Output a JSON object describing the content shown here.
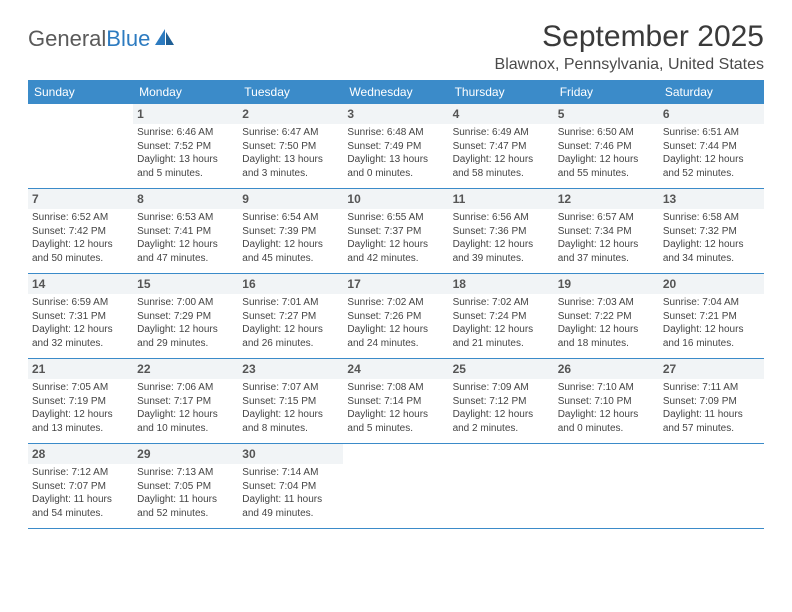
{
  "logo": {
    "text1": "General",
    "text2": "Blue"
  },
  "title": "September 2025",
  "location": "Blawnox, Pennsylvania, United States",
  "colors": {
    "header_bg": "#3b8bc9",
    "header_text": "#ffffff",
    "shade_bg": "#f1f4f6",
    "border": "#3b8bc9",
    "logo_blue": "#2d7bc0"
  },
  "dayHeaders": [
    "Sunday",
    "Monday",
    "Tuesday",
    "Wednesday",
    "Thursday",
    "Friday",
    "Saturday"
  ],
  "weeks": [
    [
      {
        "num": "",
        "sunrise": "",
        "sunset": "",
        "daylight": ""
      },
      {
        "num": "1",
        "sunrise": "Sunrise: 6:46 AM",
        "sunset": "Sunset: 7:52 PM",
        "daylight": "Daylight: 13 hours and 5 minutes."
      },
      {
        "num": "2",
        "sunrise": "Sunrise: 6:47 AM",
        "sunset": "Sunset: 7:50 PM",
        "daylight": "Daylight: 13 hours and 3 minutes."
      },
      {
        "num": "3",
        "sunrise": "Sunrise: 6:48 AM",
        "sunset": "Sunset: 7:49 PM",
        "daylight": "Daylight: 13 hours and 0 minutes."
      },
      {
        "num": "4",
        "sunrise": "Sunrise: 6:49 AM",
        "sunset": "Sunset: 7:47 PM",
        "daylight": "Daylight: 12 hours and 58 minutes."
      },
      {
        "num": "5",
        "sunrise": "Sunrise: 6:50 AM",
        "sunset": "Sunset: 7:46 PM",
        "daylight": "Daylight: 12 hours and 55 minutes."
      },
      {
        "num": "6",
        "sunrise": "Sunrise: 6:51 AM",
        "sunset": "Sunset: 7:44 PM",
        "daylight": "Daylight: 12 hours and 52 minutes."
      }
    ],
    [
      {
        "num": "7",
        "sunrise": "Sunrise: 6:52 AM",
        "sunset": "Sunset: 7:42 PM",
        "daylight": "Daylight: 12 hours and 50 minutes."
      },
      {
        "num": "8",
        "sunrise": "Sunrise: 6:53 AM",
        "sunset": "Sunset: 7:41 PM",
        "daylight": "Daylight: 12 hours and 47 minutes."
      },
      {
        "num": "9",
        "sunrise": "Sunrise: 6:54 AM",
        "sunset": "Sunset: 7:39 PM",
        "daylight": "Daylight: 12 hours and 45 minutes."
      },
      {
        "num": "10",
        "sunrise": "Sunrise: 6:55 AM",
        "sunset": "Sunset: 7:37 PM",
        "daylight": "Daylight: 12 hours and 42 minutes."
      },
      {
        "num": "11",
        "sunrise": "Sunrise: 6:56 AM",
        "sunset": "Sunset: 7:36 PM",
        "daylight": "Daylight: 12 hours and 39 minutes."
      },
      {
        "num": "12",
        "sunrise": "Sunrise: 6:57 AM",
        "sunset": "Sunset: 7:34 PM",
        "daylight": "Daylight: 12 hours and 37 minutes."
      },
      {
        "num": "13",
        "sunrise": "Sunrise: 6:58 AM",
        "sunset": "Sunset: 7:32 PM",
        "daylight": "Daylight: 12 hours and 34 minutes."
      }
    ],
    [
      {
        "num": "14",
        "sunrise": "Sunrise: 6:59 AM",
        "sunset": "Sunset: 7:31 PM",
        "daylight": "Daylight: 12 hours and 32 minutes."
      },
      {
        "num": "15",
        "sunrise": "Sunrise: 7:00 AM",
        "sunset": "Sunset: 7:29 PM",
        "daylight": "Daylight: 12 hours and 29 minutes."
      },
      {
        "num": "16",
        "sunrise": "Sunrise: 7:01 AM",
        "sunset": "Sunset: 7:27 PM",
        "daylight": "Daylight: 12 hours and 26 minutes."
      },
      {
        "num": "17",
        "sunrise": "Sunrise: 7:02 AM",
        "sunset": "Sunset: 7:26 PM",
        "daylight": "Daylight: 12 hours and 24 minutes."
      },
      {
        "num": "18",
        "sunrise": "Sunrise: 7:02 AM",
        "sunset": "Sunset: 7:24 PM",
        "daylight": "Daylight: 12 hours and 21 minutes."
      },
      {
        "num": "19",
        "sunrise": "Sunrise: 7:03 AM",
        "sunset": "Sunset: 7:22 PM",
        "daylight": "Daylight: 12 hours and 18 minutes."
      },
      {
        "num": "20",
        "sunrise": "Sunrise: 7:04 AM",
        "sunset": "Sunset: 7:21 PM",
        "daylight": "Daylight: 12 hours and 16 minutes."
      }
    ],
    [
      {
        "num": "21",
        "sunrise": "Sunrise: 7:05 AM",
        "sunset": "Sunset: 7:19 PM",
        "daylight": "Daylight: 12 hours and 13 minutes."
      },
      {
        "num": "22",
        "sunrise": "Sunrise: 7:06 AM",
        "sunset": "Sunset: 7:17 PM",
        "daylight": "Daylight: 12 hours and 10 minutes."
      },
      {
        "num": "23",
        "sunrise": "Sunrise: 7:07 AM",
        "sunset": "Sunset: 7:15 PM",
        "daylight": "Daylight: 12 hours and 8 minutes."
      },
      {
        "num": "24",
        "sunrise": "Sunrise: 7:08 AM",
        "sunset": "Sunset: 7:14 PM",
        "daylight": "Daylight: 12 hours and 5 minutes."
      },
      {
        "num": "25",
        "sunrise": "Sunrise: 7:09 AM",
        "sunset": "Sunset: 7:12 PM",
        "daylight": "Daylight: 12 hours and 2 minutes."
      },
      {
        "num": "26",
        "sunrise": "Sunrise: 7:10 AM",
        "sunset": "Sunset: 7:10 PM",
        "daylight": "Daylight: 12 hours and 0 minutes."
      },
      {
        "num": "27",
        "sunrise": "Sunrise: 7:11 AM",
        "sunset": "Sunset: 7:09 PM",
        "daylight": "Daylight: 11 hours and 57 minutes."
      }
    ],
    [
      {
        "num": "28",
        "sunrise": "Sunrise: 7:12 AM",
        "sunset": "Sunset: 7:07 PM",
        "daylight": "Daylight: 11 hours and 54 minutes."
      },
      {
        "num": "29",
        "sunrise": "Sunrise: 7:13 AM",
        "sunset": "Sunset: 7:05 PM",
        "daylight": "Daylight: 11 hours and 52 minutes."
      },
      {
        "num": "30",
        "sunrise": "Sunrise: 7:14 AM",
        "sunset": "Sunset: 7:04 PM",
        "daylight": "Daylight: 11 hours and 49 minutes."
      },
      {
        "num": "",
        "sunrise": "",
        "sunset": "",
        "daylight": ""
      },
      {
        "num": "",
        "sunrise": "",
        "sunset": "",
        "daylight": ""
      },
      {
        "num": "",
        "sunrise": "",
        "sunset": "",
        "daylight": ""
      },
      {
        "num": "",
        "sunrise": "",
        "sunset": "",
        "daylight": ""
      }
    ]
  ]
}
